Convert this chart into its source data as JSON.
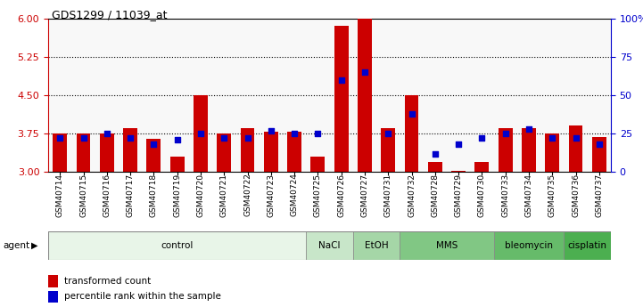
{
  "title": "GDS1299 / 11039_at",
  "samples": [
    "GSM40714",
    "GSM40715",
    "GSM40716",
    "GSM40717",
    "GSM40718",
    "GSM40719",
    "GSM40720",
    "GSM40721",
    "GSM40722",
    "GSM40723",
    "GSM40724",
    "GSM40725",
    "GSM40726",
    "GSM40727",
    "GSM40731",
    "GSM40732",
    "GSM40728",
    "GSM40729",
    "GSM40730",
    "GSM40733",
    "GSM40734",
    "GSM40735",
    "GSM40736",
    "GSM40737"
  ],
  "bar_values": [
    3.75,
    3.75,
    3.75,
    3.85,
    3.65,
    3.3,
    4.5,
    3.75,
    3.85,
    3.78,
    3.78,
    3.3,
    5.85,
    6.0,
    3.85,
    4.5,
    3.2,
    3.02,
    3.2,
    3.85,
    3.85,
    3.75,
    3.9,
    3.68
  ],
  "percentile_values": [
    22,
    22,
    25,
    22,
    18,
    21,
    25,
    22,
    22,
    27,
    25,
    25,
    60,
    65,
    25,
    38,
    12,
    18,
    22,
    25,
    28,
    22,
    22,
    18
  ],
  "bar_color": "#cc0000",
  "dot_color": "#0000cc",
  "ylim_left": [
    3.0,
    6.0
  ],
  "ylim_right": [
    0,
    100
  ],
  "yticks_left": [
    3.0,
    3.75,
    4.5,
    5.25,
    6.0
  ],
  "yticks_right": [
    0,
    25,
    50,
    75,
    100
  ],
  "hlines": [
    3.75,
    4.5,
    5.25
  ],
  "agent_groups": [
    {
      "label": "control",
      "start": 0,
      "end": 11
    },
    {
      "label": "NaCl",
      "start": 11,
      "end": 13
    },
    {
      "label": "EtOH",
      "start": 13,
      "end": 15
    },
    {
      "label": "MMS",
      "start": 15,
      "end": 19
    },
    {
      "label": "bleomycin",
      "start": 19,
      "end": 22
    },
    {
      "label": "cisplatin",
      "start": 22,
      "end": 24
    }
  ],
  "group_colors": [
    "#e8f5e8",
    "#c8e6c9",
    "#a5d6a7",
    "#81c784",
    "#66bb6a",
    "#4caf50"
  ],
  "legend_items": [
    {
      "label": "transformed count",
      "color": "#cc0000"
    },
    {
      "label": "percentile rank within the sample",
      "color": "#0000cc"
    }
  ],
  "bar_width": 0.6,
  "background_color": "#ffffff",
  "axis_color_left": "#cc0000",
  "axis_color_right": "#0000cc",
  "plot_bg": "#f8f8f8"
}
